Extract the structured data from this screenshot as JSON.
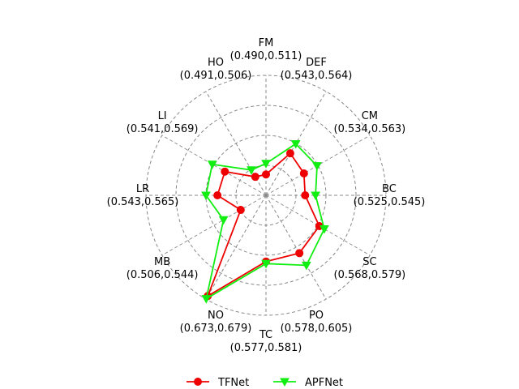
{
  "chart_data": {
    "type": "radar",
    "axes": [
      {
        "name": "FM",
        "label": "(0.490,0.511)"
      },
      {
        "name": "DEF",
        "label": "(0.543,0.564)"
      },
      {
        "name": "CM",
        "label": "(0.534,0.563)"
      },
      {
        "name": "BC",
        "label": "(0.525,0.545)"
      },
      {
        "name": "SC",
        "label": "(0.568,0.579)"
      },
      {
        "name": "PO",
        "label": "(0.578,0.605)"
      },
      {
        "name": "TC",
        "label": "(0.577,0.581)"
      },
      {
        "name": "NO",
        "label": "(0.673,0.679)"
      },
      {
        "name": "MB",
        "label": "(0.506,0.544)"
      },
      {
        "name": "LR",
        "label": "(0.543,0.565)"
      },
      {
        "name": "LI",
        "label": "(0.541,0.569)"
      },
      {
        "name": "HO",
        "label": "(0.491,0.506)"
      }
    ],
    "series": [
      {
        "name": "TFNet",
        "color": "#ee0000",
        "marker": "circle",
        "values": [
          0.49,
          0.543,
          0.534,
          0.525,
          0.568,
          0.578,
          0.577,
          0.673,
          0.506,
          0.543,
          0.541,
          0.491
        ]
      },
      {
        "name": "APFNet",
        "color": "#11ee11",
        "marker": "triangle-down",
        "values": [
          0.511,
          0.564,
          0.563,
          0.545,
          0.579,
          0.605,
          0.581,
          0.679,
          0.544,
          0.565,
          0.569,
          0.506
        ]
      }
    ],
    "rlim": [
      0.45,
      0.68
    ],
    "grid": true,
    "legend_position": "bottom"
  }
}
